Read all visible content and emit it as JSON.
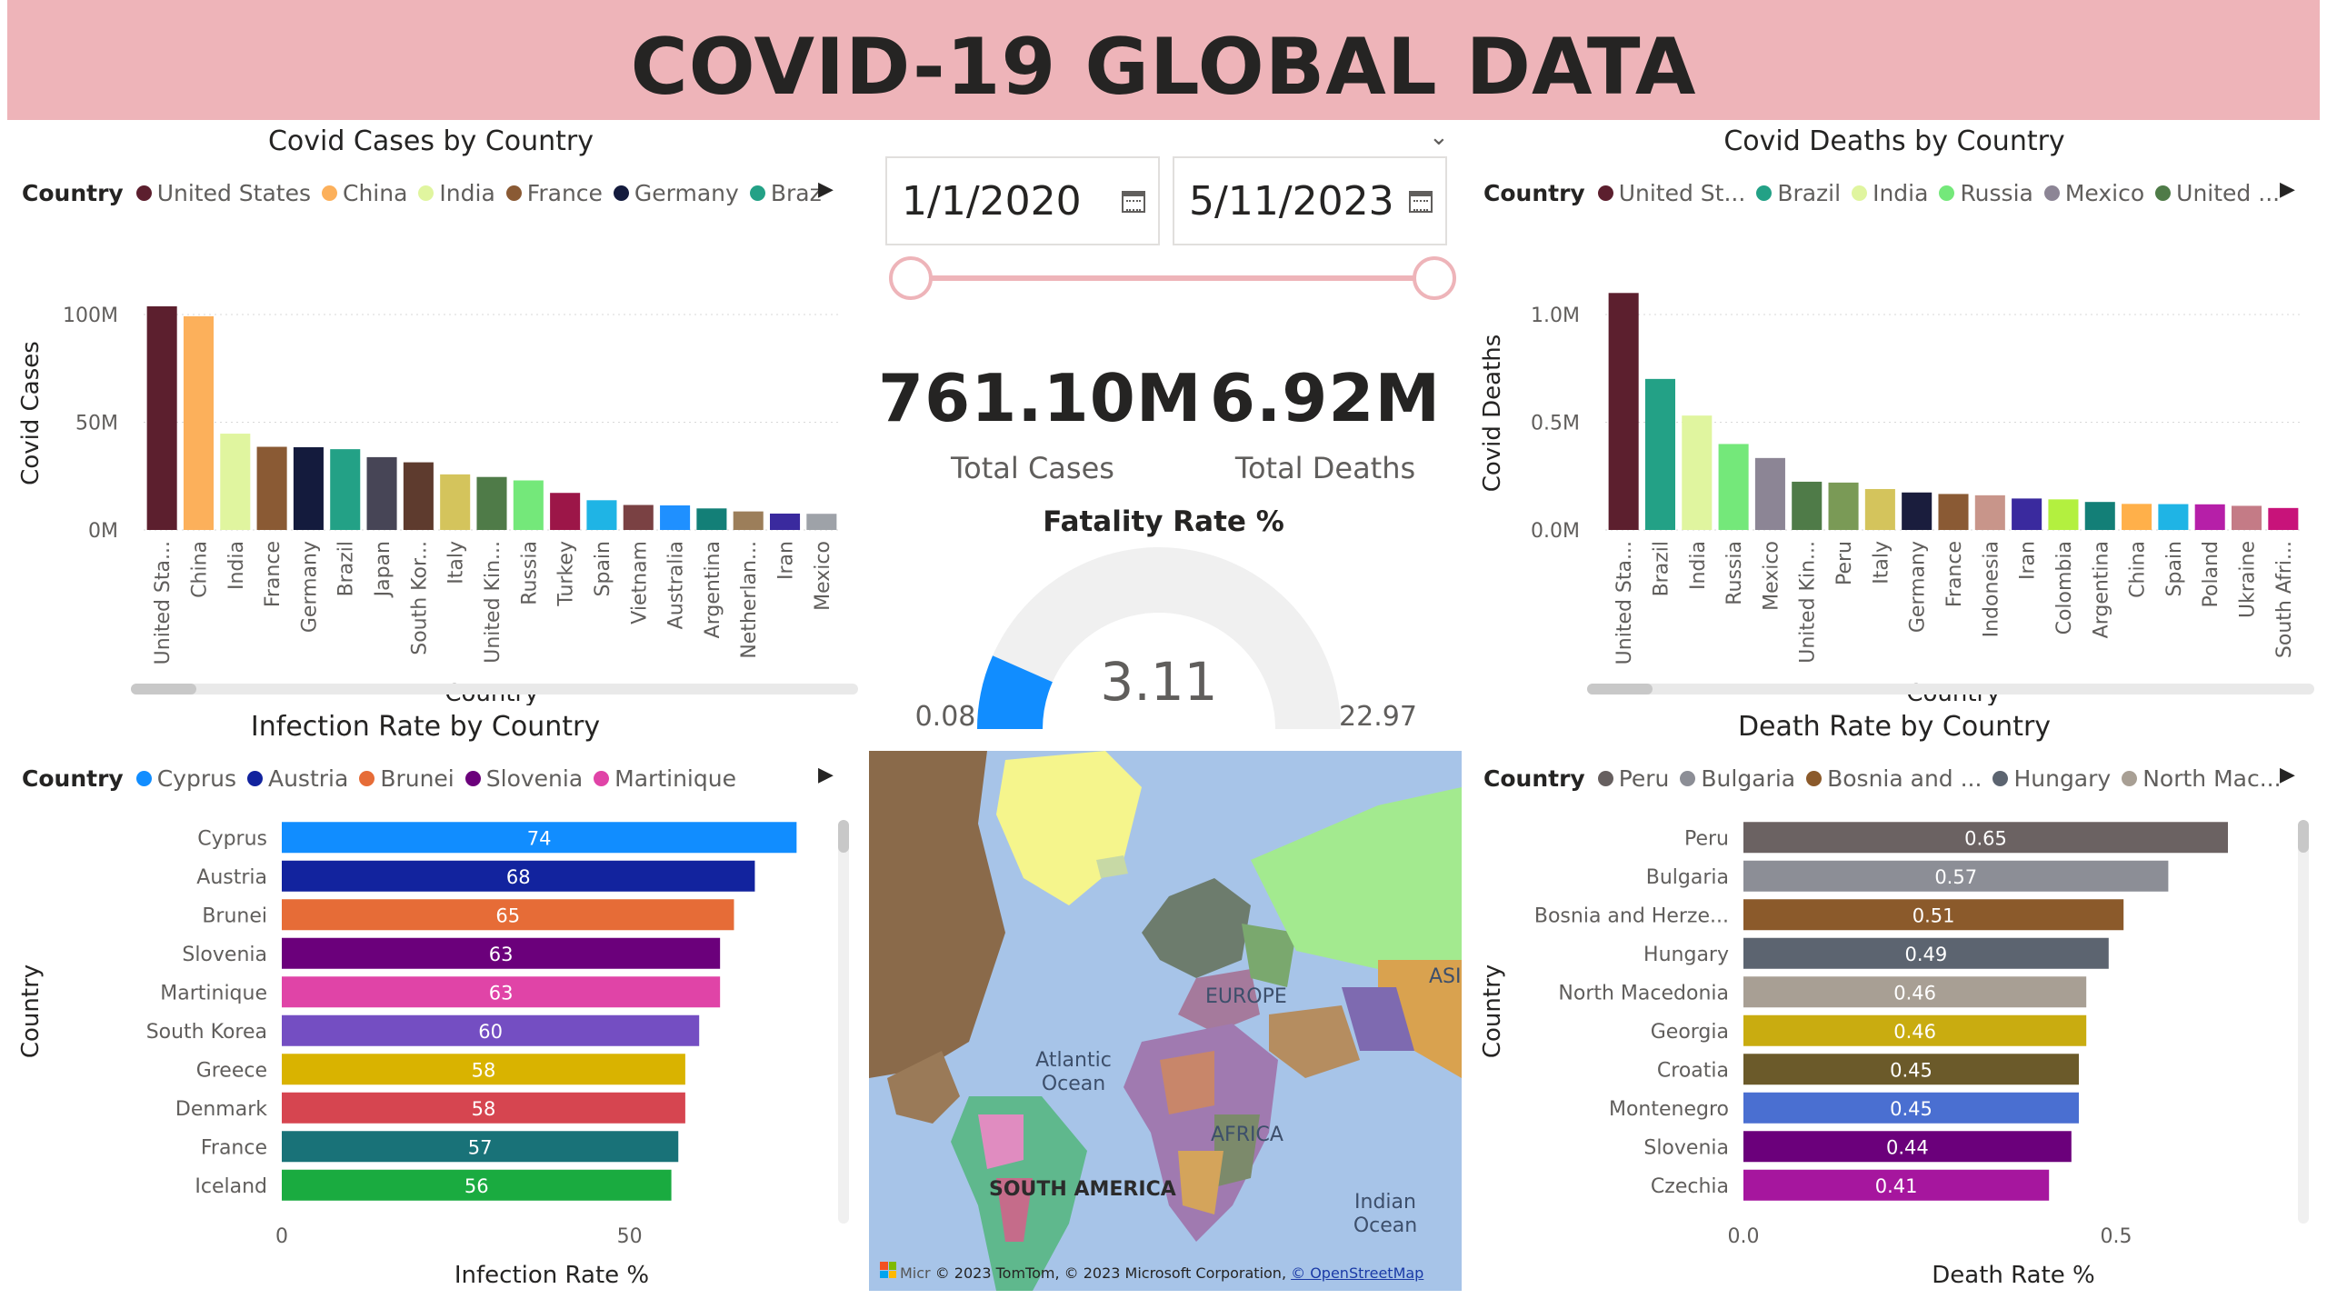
{
  "header": {
    "title": "COVID-19 GLOBAL DATA"
  },
  "slicer": {
    "start_date": "1/1/2020",
    "end_date": "5/11/2023",
    "chevron": "chevron-down-icon"
  },
  "kpis": {
    "total_cases": {
      "value": "761.10M",
      "label": "Total Cases"
    },
    "total_deaths": {
      "value": "6.92M",
      "label": "Total Deaths"
    }
  },
  "fatality": {
    "title": "Fatality Rate %",
    "value": "3.11",
    "min": "0.08",
    "max": "22.97",
    "gauge": {
      "min": 0.08,
      "max": 22.97,
      "value": 3.11,
      "track_color": "#f0f0f0",
      "fill_color": "#118dff"
    }
  },
  "map": {
    "labels": {
      "europe": "EUROPE",
      "asia": "ASI",
      "atlantic": "Atlantic Ocean",
      "africa": "AFRICA",
      "south_america": "SOUTH AMERICA",
      "indian": "Indian Ocean"
    },
    "attribution": "© 2023 TomTom, © 2023 Microsoft Corporation,",
    "attribution_link": "© OpenStreetMap",
    "logo_text": "Micr"
  },
  "cases_chart": {
    "title": "Covid Cases by Country",
    "legend_title": "Country",
    "legend": [
      {
        "name": "United States",
        "color": "#5c1f2e"
      },
      {
        "name": "China",
        "color": "#fcb05b"
      },
      {
        "name": "India",
        "color": "#e0f59f"
      },
      {
        "name": "France",
        "color": "#8a5a34"
      },
      {
        "name": "Germany",
        "color": "#141b3d"
      },
      {
        "name": "Brazil",
        "color": "#23a186"
      }
    ],
    "chart_data": {
      "type": "bar",
      "xlabel": "Country",
      "ylabel": "Covid Cases",
      "ylim": [
        0,
        100000000
      ],
      "yticks": [
        {
          "v": 0,
          "t": "0M"
        },
        {
          "v": 50000000,
          "t": "50M"
        },
        {
          "v": 100000000,
          "t": "100M"
        }
      ],
      "categories": [
        "United Sta...",
        "China",
        "India",
        "France",
        "Germany",
        "Brazil",
        "Japan",
        "South Kor...",
        "Italy",
        "United Kin...",
        "Russia",
        "Turkey",
        "Spain",
        "Vietnam",
        "Australia",
        "Argentina",
        "Netherlan...",
        "Iran",
        "Mexico"
      ],
      "values": [
        103800000,
        99200000,
        44700000,
        38600000,
        38400000,
        37500000,
        33800000,
        31400000,
        25800000,
        24600000,
        23000000,
        17200000,
        13800000,
        11600000,
        11400000,
        10000000,
        8600000,
        7600000,
        7500000
      ],
      "colors": [
        "#5c1f2e",
        "#fcb05b",
        "#e0f59f",
        "#8a5a34",
        "#141b3d",
        "#23a186",
        "#474556",
        "#5e3b2e",
        "#d4c45c",
        "#4f7b48",
        "#74e87a",
        "#9c1648",
        "#1fb4e5",
        "#7a4143",
        "#1f90ff",
        "#137f77",
        "#9c7e5a",
        "#3a2a9e",
        "#9ea2a8"
      ]
    }
  },
  "deaths_chart": {
    "title": "Covid Deaths by Country",
    "legend_title": "Country",
    "legend": [
      {
        "name": "United St...",
        "color": "#5c1f2e"
      },
      {
        "name": "Brazil",
        "color": "#23a186"
      },
      {
        "name": "India",
        "color": "#e0f59f"
      },
      {
        "name": "Russia",
        "color": "#74e87a"
      },
      {
        "name": "Mexico",
        "color": "#8c8595"
      },
      {
        "name": "United ...",
        "color": "#4f7b48"
      }
    ],
    "chart_data": {
      "type": "bar",
      "xlabel": "Country",
      "ylabel": "Covid Deaths",
      "ylim": [
        0,
        1000000
      ],
      "yticks": [
        {
          "v": 0,
          "t": "0.0M"
        },
        {
          "v": 500000,
          "t": "0.5M"
        },
        {
          "v": 1000000,
          "t": "1.0M"
        }
      ],
      "categories": [
        "United Sta...",
        "Brazil",
        "India",
        "Russia",
        "Mexico",
        "United Kin...",
        "Peru",
        "Italy",
        "Germany",
        "France",
        "Indonesia",
        "Iran",
        "Colombia",
        "Argentina",
        "China",
        "Spain",
        "Poland",
        "Ukraine",
        "South Afri..."
      ],
      "values": [
        1127000,
        701000,
        531000,
        399000,
        334000,
        224000,
        220000,
        190000,
        174000,
        167000,
        161000,
        146000,
        142000,
        130000,
        121000,
        120000,
        119000,
        112000,
        102000
      ],
      "colors": [
        "#5c1f2e",
        "#23a186",
        "#e0f59f",
        "#74e87a",
        "#8c8595",
        "#4f7b48",
        "#7a9a56",
        "#d4c45c",
        "#1a1d3d",
        "#8a5a34",
        "#c8958a",
        "#3a2a9e",
        "#b3f03f",
        "#137f77",
        "#ffb04a",
        "#1fb4e5",
        "#b61fa8",
        "#c47b86",
        "#c8137a"
      ]
    }
  },
  "infection_chart": {
    "title": "Infection Rate by Country",
    "legend_title": "Country",
    "legend": [
      {
        "name": "Cyprus",
        "color": "#118dff"
      },
      {
        "name": "Austria",
        "color": "#12239e"
      },
      {
        "name": "Brunei",
        "color": "#e66c37"
      },
      {
        "name": "Slovenia",
        "color": "#6b007b"
      },
      {
        "name": "Martinique",
        "color": "#e044a7"
      }
    ],
    "chart_data": {
      "type": "bar",
      "orientation": "horizontal",
      "xlabel": "Infection Rate %",
      "ylabel": "Country",
      "xlim": [
        0,
        75
      ],
      "xticks": [
        {
          "v": 0,
          "t": "0"
        },
        {
          "v": 50,
          "t": "50"
        }
      ],
      "categories": [
        "Cyprus",
        "Austria",
        "Brunei",
        "Slovenia",
        "Martinique",
        "South Korea",
        "Greece",
        "Denmark",
        "France",
        "Iceland"
      ],
      "values": [
        74,
        68,
        65,
        63,
        63,
        60,
        58,
        58,
        57,
        56
      ],
      "colors": [
        "#118dff",
        "#12239e",
        "#e66c37",
        "#6b007b",
        "#e044a7",
        "#744ec2",
        "#d9b300",
        "#d64550",
        "#197278",
        "#1aab40"
      ]
    }
  },
  "death_rate_chart": {
    "title": "Death Rate by Country",
    "legend_title": "Country",
    "legend": [
      {
        "name": "Peru",
        "color": "#665f5f"
      },
      {
        "name": "Bulgaria",
        "color": "#8c8e96"
      },
      {
        "name": "Bosnia and ...",
        "color": "#8b5a2b"
      },
      {
        "name": "Hungary",
        "color": "#5c6470"
      },
      {
        "name": "North Mac...",
        "color": "#a89f94"
      }
    ],
    "chart_data": {
      "type": "bar",
      "orientation": "horizontal",
      "xlabel": "Death Rate %",
      "ylabel": "Country",
      "xlim": [
        0,
        0.7
      ],
      "xticks": [
        {
          "v": 0,
          "t": "0.0"
        },
        {
          "v": 0.5,
          "t": "0.5"
        }
      ],
      "categories": [
        "Peru",
        "Bulgaria",
        "Bosnia and Herze...",
        "Hungary",
        "North Macedonia",
        "Georgia",
        "Croatia",
        "Montenegro",
        "Slovenia",
        "Czechia"
      ],
      "values": [
        0.65,
        0.57,
        0.51,
        0.49,
        0.46,
        0.46,
        0.45,
        0.45,
        0.44,
        0.41
      ],
      "labels": [
        "0.65",
        "0.57",
        "0.51",
        "0.49",
        "0.46",
        "0.46",
        "0.45",
        "0.45",
        "0.44",
        "0.41"
      ],
      "colors": [
        "#6b6262",
        "#8c8e96",
        "#8b5a2b",
        "#5c6470",
        "#a89f94",
        "#c9ac10",
        "#6b5a2a",
        "#4a6fd1",
        "#6b007b",
        "#a6169e"
      ]
    }
  }
}
